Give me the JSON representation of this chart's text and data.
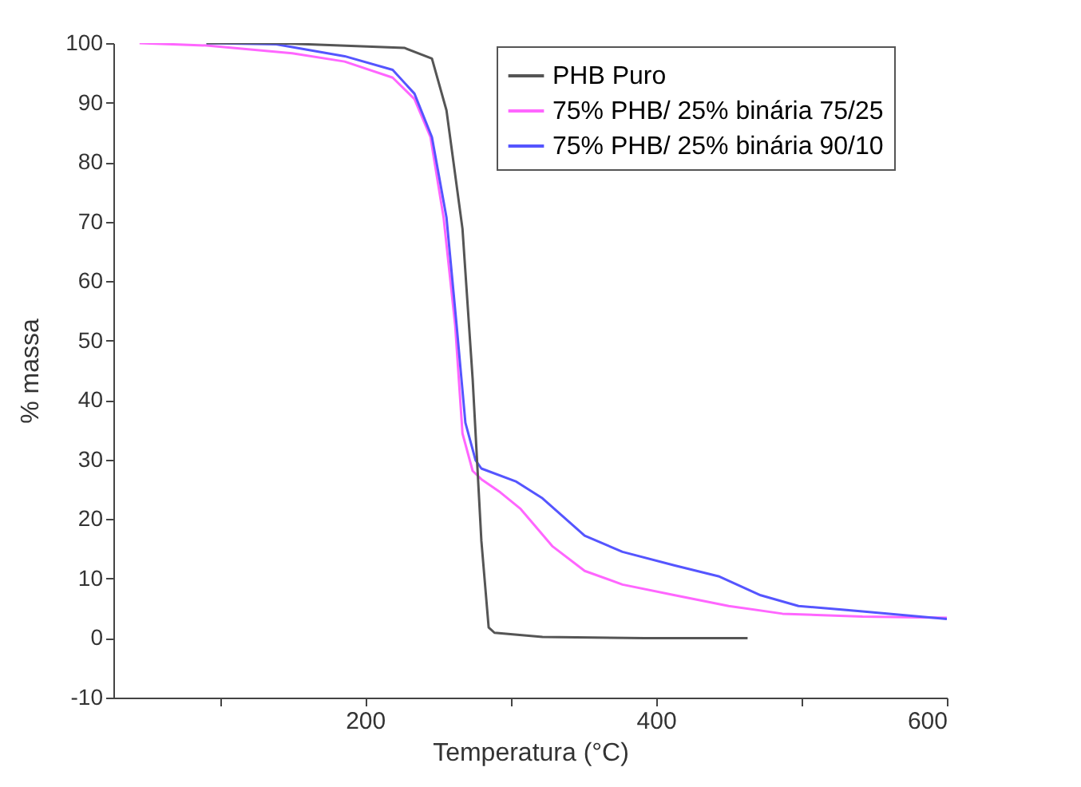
{
  "chart_data": {
    "type": "line",
    "xlabel": "Temperatura (°C)",
    "ylabel": "% massa",
    "xlim": [
      27,
      600
    ],
    "xticks": [
      {
        "value": 100,
        "label": null
      },
      200,
      {
        "value": 300,
        "label": null
      },
      400,
      {
        "value": 500,
        "label": null
      },
      600
    ],
    "ylim": [
      -10,
      100
    ],
    "yticks": [
      -10,
      0,
      10,
      20,
      30,
      40,
      50,
      60,
      70,
      80,
      90,
      100
    ],
    "grid": false,
    "legend": "top right",
    "marker": "none",
    "line_style": "solid",
    "series": [
      {
        "name": "PHB Puro",
        "color": "#555555",
        "x": [
          91,
          139,
          227,
          246,
          256,
          267,
          274,
          280,
          285,
          289,
          322,
          392,
          463
        ],
        "values": [
          100,
          100,
          99.2,
          97.4,
          88.7,
          68.8,
          43.5,
          16.3,
          1.8,
          0.9,
          0.2,
          0,
          0
        ]
      },
      {
        "name": "75% PHB/ 25% binária 75/25",
        "color": "#ff66ff",
        "x": [
          45,
          91,
          150,
          186,
          219,
          234,
          245,
          254,
          262,
          267,
          274,
          280,
          293,
          307,
          329,
          351,
          377,
          413,
          450,
          487,
          542,
          600
        ],
        "values": [
          100,
          99.6,
          98.3,
          96.9,
          94.2,
          90.6,
          84.2,
          70.7,
          52.5,
          34.4,
          28.1,
          26.7,
          24.5,
          21.7,
          15.4,
          11.3,
          9.0,
          7.2,
          5.4,
          4.1,
          3.6,
          3.4
        ]
      },
      {
        "name": "75% PHB/ 25% binária 90/10",
        "color": "#5555ff",
        "x": [
          91,
          139,
          186,
          219,
          234,
          246,
          256,
          263,
          269,
          276,
          280,
          304,
          322,
          351,
          377,
          413,
          443,
          472,
          498,
          542,
          600
        ],
        "values": [
          100,
          99.8,
          97.8,
          95.5,
          91.5,
          84.2,
          70.7,
          52.5,
          36.2,
          29.9,
          28.5,
          26.3,
          23.5,
          17.2,
          14.5,
          12.2,
          10.4,
          7.2,
          5.4,
          4.5,
          3.2
        ]
      }
    ]
  }
}
